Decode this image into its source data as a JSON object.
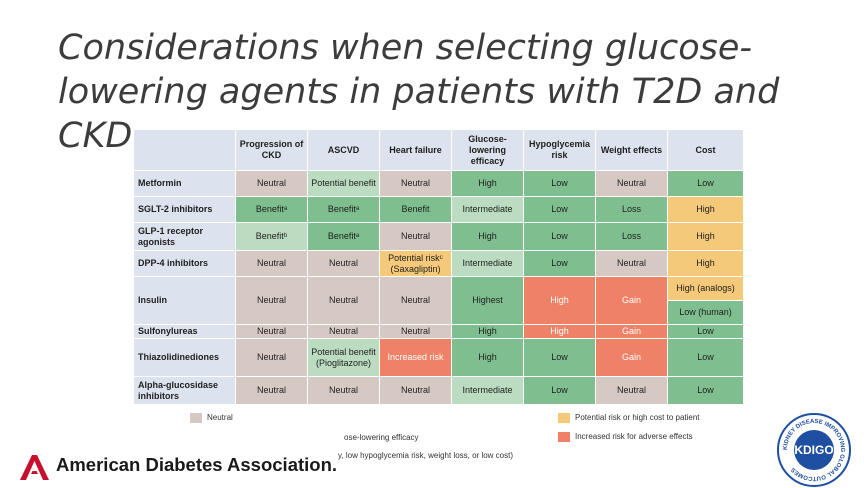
{
  "slide": {
    "title_line1": "Considerations when selecting glucose-",
    "title_line2": "lowering agents in patients with T2D and CKD"
  },
  "table": {
    "headers": [
      "",
      "Progression of CKD",
      "ASCVD",
      "Heart failure",
      "Glucose-lowering efficacy",
      "Hypoglycemia risk",
      "Weight effects",
      "Cost"
    ],
    "rows": [
      {
        "agent": "Metformin",
        "cells": [
          "Neutral",
          "Potential benefit",
          "Neutral",
          "High",
          "Low",
          "Neutral",
          "Low"
        ]
      },
      {
        "agent": "SGLT-2 inhibitors",
        "cells": [
          "Benefitᵃ",
          "Benefitᵃ",
          "Benefit",
          "Intermediate",
          "Low",
          "Loss",
          "High"
        ]
      },
      {
        "agent": "GLP-1 receptor agonists",
        "cells": [
          "Benefitᵇ",
          "Benefitᵃ",
          "Neutral",
          "High",
          "Low",
          "Loss",
          "High"
        ]
      },
      {
        "agent": "DPP-4 inhibitors",
        "cells": [
          "Neutral",
          "Neutral",
          "Potential riskᶜ (Saxagliptin)",
          "Intermediate",
          "Low",
          "Neutral",
          "High"
        ]
      },
      {
        "agent": "Insulin",
        "cells": [
          "Neutral",
          "Neutral",
          "Neutral",
          "Highest",
          "High",
          "Gain"
        ],
        "cost_a": "High (analogs)",
        "cost_b": "Low (human)"
      },
      {
        "agent": "Sulfonylureas",
        "cells": [
          "Neutral",
          "Neutral",
          "Neutral",
          "High",
          "High",
          "Gain",
          "Low"
        ]
      },
      {
        "agent": "Thiazolidinediones",
        "cells": [
          "Neutral",
          "Potential benefit (Pioglitazone)",
          "Increased risk",
          "High",
          "Low",
          "Gain",
          "Low"
        ]
      },
      {
        "agent": "Alpha-glucosidase inhibitors",
        "cells": [
          "Neutral",
          "Neutral",
          "Neutral",
          "Intermediate",
          "Low",
          "Neutral",
          "Low"
        ]
      }
    ]
  },
  "legend": {
    "neutral": "Neutral",
    "efficacy": "ose-lowering efficacy",
    "benefit_partial": "y, low hypoglycemia risk, weight loss, or low cost)",
    "potential_risk": "Potential risk or high cost to patient",
    "increased_risk": "Increased risk for adverse effects"
  },
  "logos": {
    "ada": "American Diabetes Association.",
    "kdigo_ring": "KIDNEY DISEASE IMPROVING GLOBAL OUTCOMES",
    "kdigo_center": "KDIGO"
  },
  "colors": {
    "neutral": "#d6c9c4",
    "benefit": "#7fbf8f",
    "light_benefit": "#bcdcc2",
    "potential_risk": "#f5c97a",
    "increased_risk": "#ee8166",
    "header": "#dde3ee",
    "ada_red": "#c8102e",
    "kdigo_blue": "#1f4fa0"
  }
}
